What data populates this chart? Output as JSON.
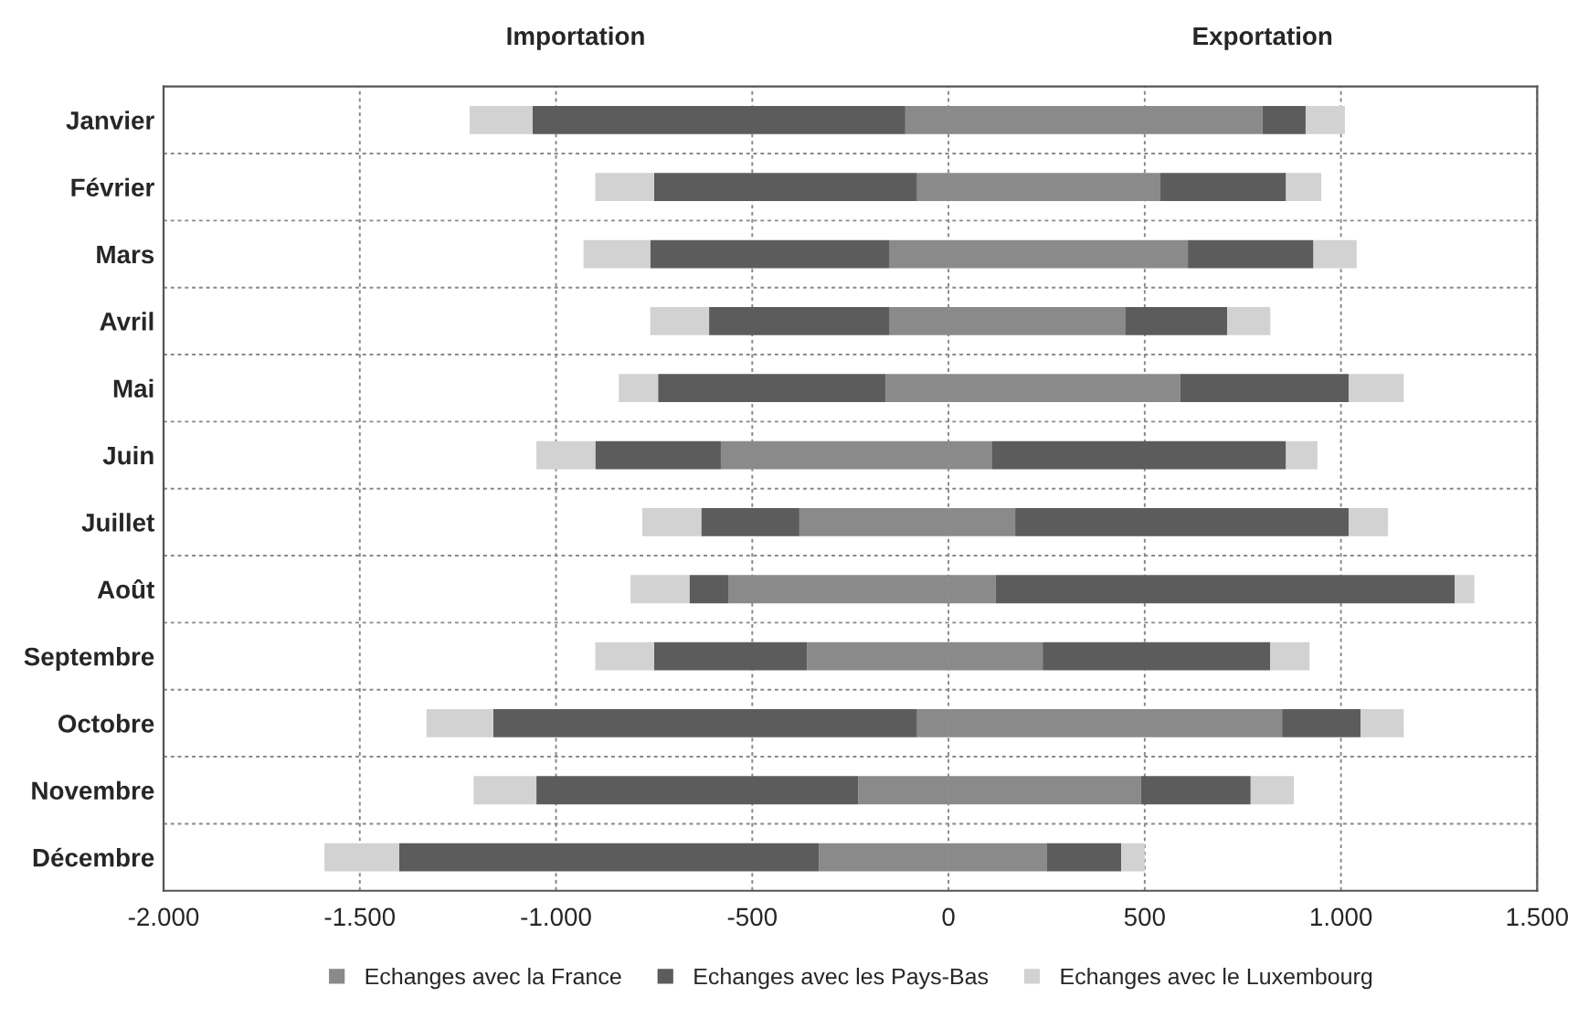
{
  "chart_data": {
    "type": "bar",
    "orientation": "horizontal",
    "stacked": true,
    "categories": [
      "Janvier",
      "Février",
      "Mars",
      "Avril",
      "Mai",
      "Juin",
      "Juillet",
      "Août",
      "Septembre",
      "Octobre",
      "Novembre",
      "Décembre"
    ],
    "series": [
      {
        "name": "Echanges avec la France",
        "color": "#8a8a8a",
        "values": [
          -110,
          -80,
          -150,
          -150,
          -160,
          -580,
          -380,
          -560,
          -360,
          -80,
          -230,
          -330
        ]
      },
      {
        "name": "Echanges avec les Pays-Bas",
        "color": "#5c5c5c",
        "values": [
          -950,
          -670,
          -610,
          -460,
          -580,
          -320,
          -250,
          -100,
          -390,
          -1080,
          -820,
          -1070
        ]
      },
      {
        "name": "Echanges avec le Luxembourg",
        "color": "#d2d2d2",
        "values": [
          -160,
          -150,
          -170,
          -150,
          -100,
          -150,
          -150,
          -150,
          -150,
          -170,
          -160,
          -190
        ]
      },
      {
        "color": "#8a8a8a",
        "values": [
          800,
          540,
          610,
          450,
          590,
          110,
          170,
          120,
          240,
          850,
          490,
          250
        ]
      },
      {
        "color": "#5c5c5c",
        "values": [
          110,
          320,
          320,
          260,
          430,
          750,
          850,
          1170,
          580,
          200,
          280,
          190
        ]
      },
      {
        "color": "#d2d2d2",
        "values": [
          100,
          90,
          110,
          110,
          140,
          80,
          100,
          50,
          100,
          110,
          110,
          60
        ]
      }
    ],
    "xlim": [
      -2000,
      1500
    ],
    "xticks": [
      {
        "value": -2000,
        "label": "-2.000"
      },
      {
        "value": -1500,
        "label": "-1.500"
      },
      {
        "value": -1000,
        "label": "-1.000"
      },
      -500,
      0,
      500,
      {
        "value": 1000,
        "label": "1.000"
      },
      {
        "value": 1500,
        "label": "1.500"
      }
    ],
    "annotations": [
      "Importation",
      "Exportation"
    ],
    "grid": true,
    "legend": "bottom"
  }
}
